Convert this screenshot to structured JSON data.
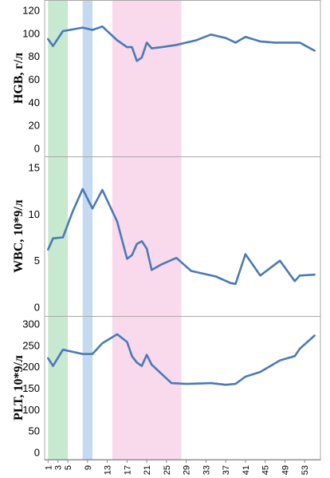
{
  "chart_data": {
    "type": "line",
    "x_ticks": [
      1,
      3,
      5,
      9,
      13,
      17,
      21,
      25,
      29,
      33,
      37,
      41,
      45,
      49,
      53
    ],
    "shaded_regions": [
      {
        "x_start": 1,
        "x_end": 5,
        "color": "#c6e9cf"
      },
      {
        "x_start": 8,
        "x_end": 10,
        "color": "#c5d9f1"
      },
      {
        "x_start": 14,
        "x_end": 28,
        "color": "#f9d9ec"
      }
    ],
    "line_color": "#4a7ab6",
    "panels": [
      {
        "id": "hgb",
        "ylabel": "HGB, г/л",
        "ylim": [
          0,
          120
        ],
        "yticks": [
          0,
          20,
          40,
          60,
          80,
          100,
          120
        ],
        "points": [
          [
            1,
            95
          ],
          [
            2,
            89
          ],
          [
            4,
            102
          ],
          [
            8,
            105
          ],
          [
            10,
            103
          ],
          [
            12,
            106
          ],
          [
            15,
            94
          ],
          [
            17,
            88
          ],
          [
            18,
            88
          ],
          [
            19,
            76
          ],
          [
            20,
            79
          ],
          [
            21,
            92
          ],
          [
            22,
            87
          ],
          [
            24,
            88
          ],
          [
            27,
            90
          ],
          [
            31,
            94
          ],
          [
            34,
            99
          ],
          [
            37,
            96
          ],
          [
            39,
            92
          ],
          [
            41,
            97
          ],
          [
            44,
            93
          ],
          [
            47,
            92
          ],
          [
            52,
            92
          ],
          [
            55,
            85
          ]
        ]
      },
      {
        "id": "wbc",
        "ylabel": "WBC, 10*9/л",
        "ylim": [
          0,
          15
        ],
        "yticks": [
          0,
          5,
          10,
          15
        ],
        "points": [
          [
            1,
            6.2
          ],
          [
            2,
            7.4
          ],
          [
            4,
            7.5
          ],
          [
            6,
            10.3
          ],
          [
            8,
            12.7
          ],
          [
            10,
            10.6
          ],
          [
            12,
            12.6
          ],
          [
            15,
            9.2
          ],
          [
            17,
            5.2
          ],
          [
            18,
            5.6
          ],
          [
            19,
            6.8
          ],
          [
            20,
            7.1
          ],
          [
            21,
            6.3
          ],
          [
            22,
            4.0
          ],
          [
            24,
            4.6
          ],
          [
            27,
            5.3
          ],
          [
            30,
            3.9
          ],
          [
            35,
            3.3
          ],
          [
            38,
            2.6
          ],
          [
            39,
            2.5
          ],
          [
            41,
            5.7
          ],
          [
            44,
            3.4
          ],
          [
            48,
            5.0
          ],
          [
            51,
            2.8
          ],
          [
            52,
            3.4
          ],
          [
            55,
            3.5
          ]
        ]
      },
      {
        "id": "plt",
        "ylabel": "PLT, 10*9/л",
        "ylim": [
          0,
          300
        ],
        "yticks": [
          0,
          50,
          100,
          150,
          200,
          250,
          300
        ],
        "points": [
          [
            1,
            220
          ],
          [
            2,
            202
          ],
          [
            4,
            240
          ],
          [
            8,
            230
          ],
          [
            10,
            230
          ],
          [
            12,
            255
          ],
          [
            15,
            276
          ],
          [
            17,
            258
          ],
          [
            18,
            225
          ],
          [
            19,
            210
          ],
          [
            20,
            202
          ],
          [
            21,
            228
          ],
          [
            22,
            205
          ],
          [
            26,
            162
          ],
          [
            29,
            160
          ],
          [
            34,
            162
          ],
          [
            37,
            158
          ],
          [
            39,
            160
          ],
          [
            41,
            177
          ],
          [
            44,
            188
          ],
          [
            48,
            215
          ],
          [
            51,
            225
          ],
          [
            52,
            242
          ],
          [
            55,
            273
          ]
        ]
      }
    ]
  }
}
